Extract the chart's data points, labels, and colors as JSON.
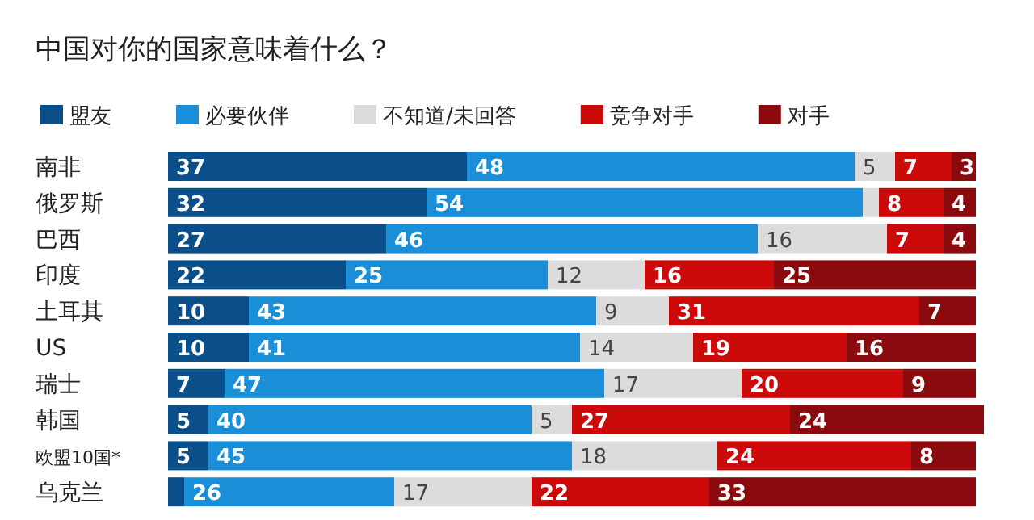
{
  "chart_data": {
    "type": "bar",
    "orientation": "horizontal",
    "stacked": true,
    "title": "中国对你的国家意味着什么？",
    "legend": "top left",
    "categories": [
      "南非",
      "俄罗斯",
      "巴西",
      "印度",
      "土耳其",
      "US",
      "瑞士",
      "韩国",
      "欧盟10国*",
      "乌克兰"
    ],
    "series": [
      {
        "name": "盟友",
        "color": "#0b4f8a",
        "values": [
          37,
          32,
          27,
          22,
          10,
          10,
          7,
          5,
          5,
          2
        ],
        "value_labels": [
          "37",
          "32",
          "27",
          "22",
          "10",
          "10",
          "7",
          "5",
          "5",
          null
        ]
      },
      {
        "name": "必要伙伴",
        "color": "#1a8fd8",
        "values": [
          48,
          54,
          46,
          25,
          43,
          41,
          47,
          40,
          45,
          26
        ],
        "value_labels": [
          "48",
          "54",
          "46",
          "25",
          "43",
          "41",
          "47",
          "40",
          "45",
          "26"
        ]
      },
      {
        "name": "不知道/未回答",
        "color": "#dcdcdc",
        "values": [
          5,
          2,
          16,
          12,
          9,
          14,
          17,
          5,
          18,
          17
        ],
        "value_labels": [
          "5",
          null,
          "16",
          "12",
          "9",
          "14",
          "17",
          "5",
          "18",
          "17"
        ]
      },
      {
        "name": "竞争对手",
        "color": "#cc0a0a",
        "values": [
          7,
          8,
          7,
          16,
          31,
          19,
          20,
          27,
          24,
          22
        ],
        "value_labels": [
          "7",
          "8",
          "7",
          "16",
          "31",
          "19",
          "20",
          "27",
          "24",
          "22"
        ]
      },
      {
        "name": "对手",
        "color": "#8b0a0e",
        "values": [
          3,
          4,
          4,
          25,
          7,
          16,
          9,
          24,
          8,
          33
        ],
        "value_labels": [
          "3",
          "4",
          "4",
          "25",
          "7",
          "16",
          "9",
          "24",
          "8",
          "33"
        ]
      }
    ]
  }
}
